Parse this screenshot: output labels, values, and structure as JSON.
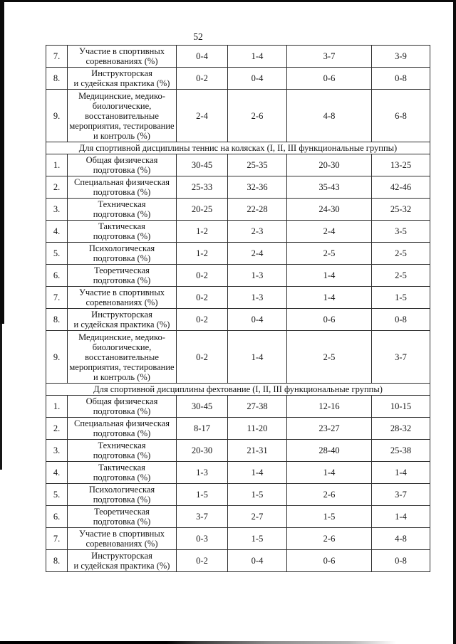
{
  "page": {
    "number": "52"
  },
  "table": {
    "sections": [
      {
        "header": null,
        "rows": [
          {
            "num": "7.",
            "name_lines": [
              "Участие в спортивных",
              "соревнованиях (%)"
            ],
            "values": [
              "0-4",
              "1-4",
              "3-7",
              "3-9"
            ]
          },
          {
            "num": "8.",
            "name_lines": [
              "Инструкторская",
              "и судейская практика (%)"
            ],
            "values": [
              "0-2",
              "0-4",
              "0-6",
              "0-8"
            ]
          },
          {
            "num": "9.",
            "name_lines": [
              "Медицинские, медико-",
              "биологические,",
              "восстановительные",
              "мероприятия, тестирование",
              "и контроль (%)"
            ],
            "values": [
              "2-4",
              "2-6",
              "4-8",
              "6-8"
            ]
          }
        ]
      },
      {
        "header": "Для спортивной дисциплины теннис на колясках (I, II, III функциональные группы)",
        "rows": [
          {
            "num": "1.",
            "name_lines": [
              "Общая физическая",
              "подготовка (%)"
            ],
            "values": [
              "30-45",
              "25-35",
              "20-30",
              "13-25"
            ]
          },
          {
            "num": "2.",
            "name_lines": [
              "Специальная физическая",
              "подготовка (%)"
            ],
            "values": [
              "25-33",
              "32-36",
              "35-43",
              "42-46"
            ]
          },
          {
            "num": "3.",
            "name_lines": [
              "Техническая",
              "подготовка (%)"
            ],
            "values": [
              "20-25",
              "22-28",
              "24-30",
              "25-32"
            ]
          },
          {
            "num": "4.",
            "name_lines": [
              "Тактическая",
              "подготовка (%)"
            ],
            "values": [
              "1-2",
              "2-3",
              "2-4",
              "3-5"
            ]
          },
          {
            "num": "5.",
            "name_lines": [
              "Психологическая",
              "подготовка (%)"
            ],
            "values": [
              "1-2",
              "2-4",
              "2-5",
              "2-5"
            ]
          },
          {
            "num": "6.",
            "name_lines": [
              "Теоретическая",
              "подготовка (%)"
            ],
            "values": [
              "0-2",
              "1-3",
              "1-4",
              "2-5"
            ]
          },
          {
            "num": "7.",
            "name_lines": [
              "Участие в спортивных",
              "соревнованиях (%)"
            ],
            "values": [
              "0-2",
              "1-3",
              "1-4",
              "1-5"
            ]
          },
          {
            "num": "8.",
            "name_lines": [
              "Инструкторская",
              "и судейская практика (%)"
            ],
            "values": [
              "0-2",
              "0-4",
              "0-6",
              "0-8"
            ]
          },
          {
            "num": "9.",
            "name_lines": [
              "Медицинские, медико-",
              "биологические,",
              "восстановительные",
              "мероприятия, тестирование",
              "и контроль (%)"
            ],
            "values": [
              "0-2",
              "1-4",
              "2-5",
              "3-7"
            ]
          }
        ]
      },
      {
        "header": "Для спортивной дисциплины фехтование (I, II, III функциональные группы)",
        "rows": [
          {
            "num": "1.",
            "name_lines": [
              "Общая физическая",
              "подготовка (%)"
            ],
            "values": [
              "30-45",
              "27-38",
              "12-16",
              "10-15"
            ]
          },
          {
            "num": "2.",
            "name_lines": [
              "Специальная физическая",
              "подготовка (%)"
            ],
            "values": [
              "8-17",
              "11-20",
              "23-27",
              "28-32"
            ]
          },
          {
            "num": "3.",
            "name_lines": [
              "Техническая",
              "подготовка (%)"
            ],
            "values": [
              "20-30",
              "21-31",
              "28-40",
              "25-38"
            ]
          },
          {
            "num": "4.",
            "name_lines": [
              "Тактическая",
              "подготовка (%)"
            ],
            "values": [
              "1-3",
              "1-4",
              "1-4",
              "1-4"
            ]
          },
          {
            "num": "5.",
            "name_lines": [
              "Психологическая",
              "подготовка (%)"
            ],
            "values": [
              "1-5",
              "1-5",
              "2-6",
              "3-7"
            ]
          },
          {
            "num": "6.",
            "name_lines": [
              "Теоретическая",
              "подготовка (%)"
            ],
            "values": [
              "3-7",
              "2-7",
              "1-5",
              "1-4"
            ]
          },
          {
            "num": "7.",
            "name_lines": [
              "Участие в спортивных",
              "соревнованиях (%)"
            ],
            "values": [
              "0-3",
              "1-5",
              "2-6",
              "4-8"
            ]
          },
          {
            "num": "8.",
            "name_lines": [
              "Инструкторская",
              "и судейская практика (%)"
            ],
            "values": [
              "0-2",
              "0-4",
              "0-6",
              "0-8"
            ]
          }
        ]
      }
    ]
  }
}
